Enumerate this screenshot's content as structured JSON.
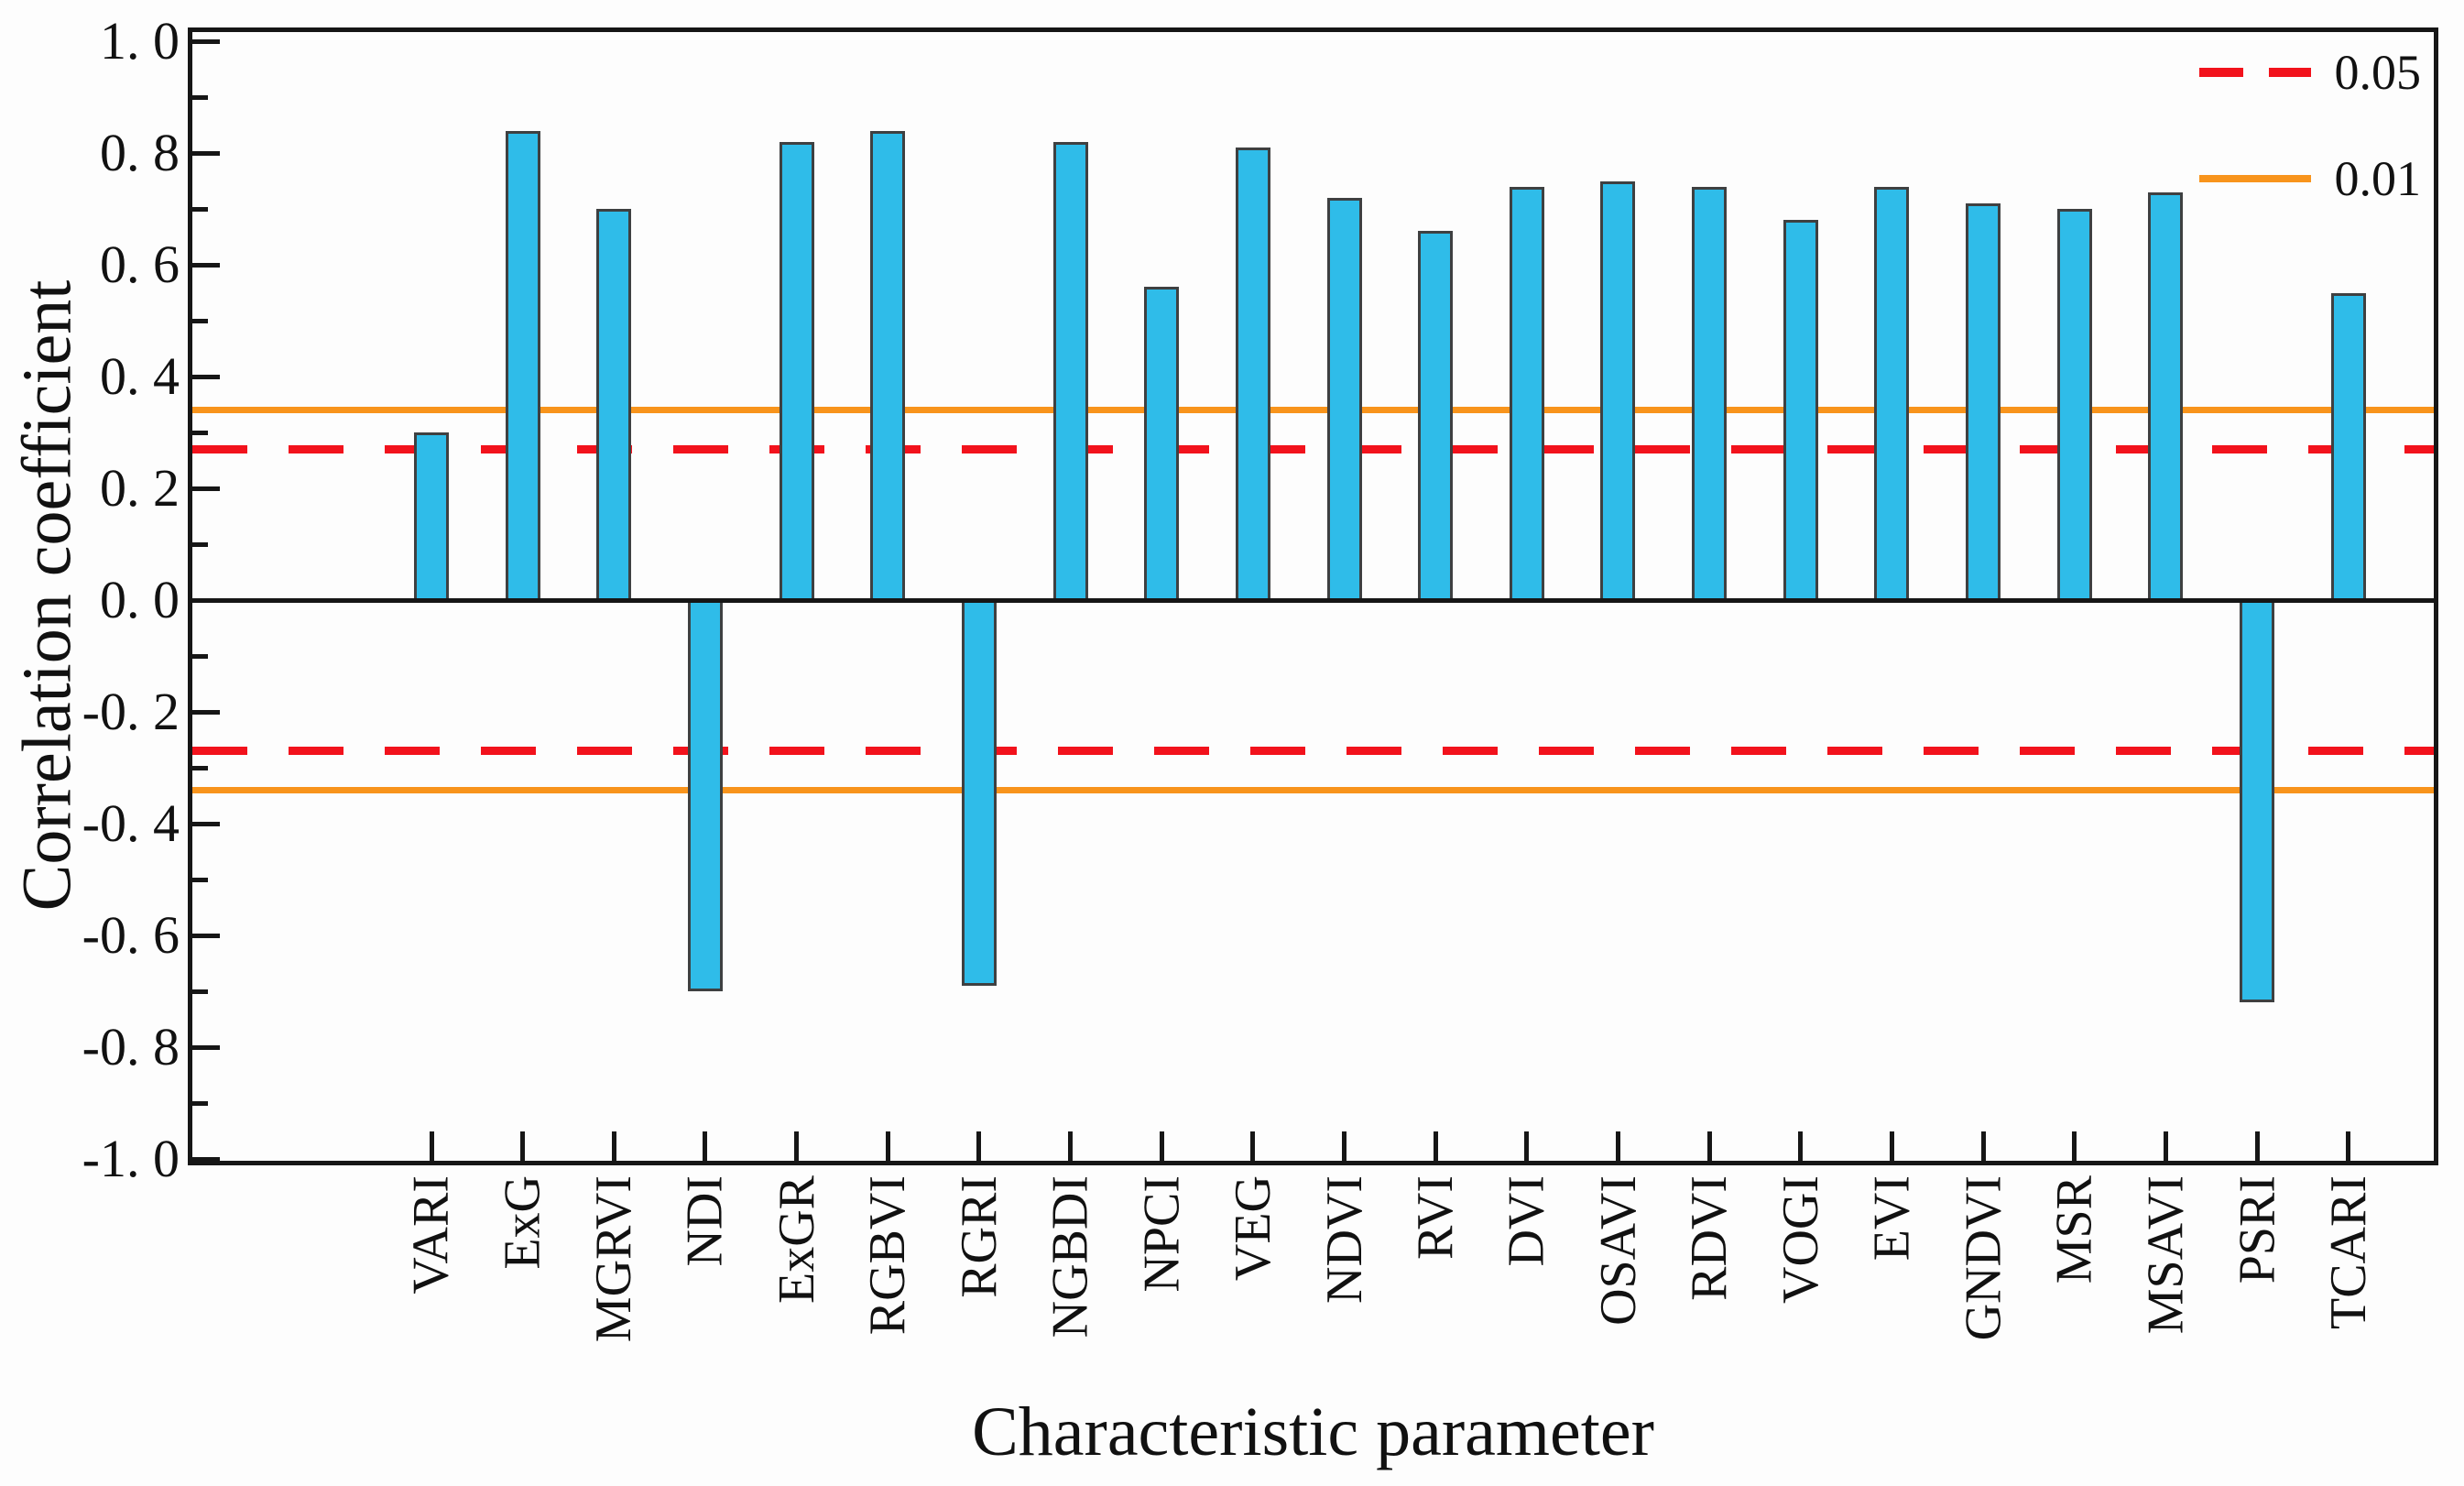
{
  "figure": {
    "y_axis_title": "Correlation coefficient",
    "x_axis_title": "Characteristic parameter",
    "y_tick_labels": [
      "1. 0",
      "0. 8",
      "0. 6",
      "0. 4",
      "0. 2",
      "0. 0",
      "-0. 2",
      "-0. 4",
      "-0. 6",
      "-0. 8",
      "-1. 0"
    ],
    "legend_labels": [
      "0.05",
      "0.01"
    ]
  },
  "chart_data": {
    "type": "bar",
    "title": "",
    "xlabel": "Characteristic parameter",
    "ylabel": "Correlation coefficient",
    "categories": [
      "VARI",
      "ExG",
      "MGRVI",
      "NDI",
      "ExGR",
      "RGBVI",
      "RGRI",
      "NGBDI",
      "NPCI",
      "VEG",
      "NDVI",
      "RVI",
      "DVI",
      "OSAVI",
      "RDVI",
      "VOGI",
      "EVI",
      "GNDVI",
      "MSR",
      "MSAVI",
      "PSRI",
      "TCARI"
    ],
    "values": [
      0.3,
      0.84,
      0.7,
      -0.7,
      0.82,
      0.84,
      -0.69,
      0.82,
      0.56,
      0.81,
      0.72,
      0.66,
      0.74,
      0.75,
      0.74,
      0.68,
      0.74,
      0.71,
      0.7,
      0.73,
      -0.72,
      0.55
    ],
    "ylim": [
      -1.0,
      1.0
    ],
    "y_major_tick_step": 0.2,
    "y_minor_tick_step": 0.1,
    "grid": false,
    "legend_position": "top-right",
    "bar_color": "#2fbce9",
    "bar_edge_color": "#3e4041",
    "reference_lines": [
      {
        "label": "0.05",
        "value": 0.27,
        "mirrored": true,
        "color": "#f2121c",
        "style": "dashed"
      },
      {
        "label": "0.01",
        "value": 0.34,
        "mirrored": true,
        "color": "#f8941c",
        "style": "solid"
      }
    ]
  }
}
